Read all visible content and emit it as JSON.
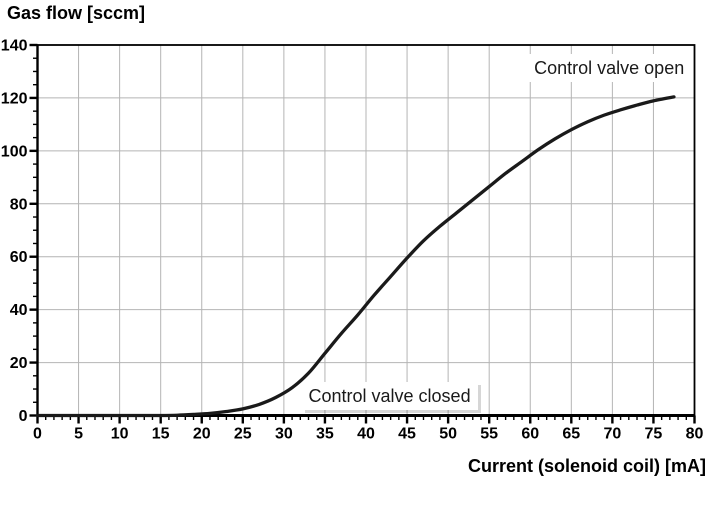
{
  "chart_data": {
    "type": "line",
    "title": "Gas flow [sccm]",
    "ylabel": "Gas flow [sccm]",
    "xlabel": "Current (solenoid coil) [mA]",
    "xlim": [
      0,
      80
    ],
    "ylim": [
      0,
      140
    ],
    "x_tick_labels": [
      0,
      5,
      10,
      15,
      20,
      25,
      30,
      35,
      40,
      45,
      50,
      55,
      60,
      65,
      70,
      75,
      80
    ],
    "y_tick_labels": [
      0,
      20,
      40,
      60,
      80,
      100,
      120,
      140
    ],
    "x_major_step": 5,
    "x_minor_step": 1,
    "y_major_step": 20,
    "y_minor_step": 5,
    "grid": true,
    "legend": "none",
    "series": [
      {
        "name": "gas-flow-vs-current",
        "x": [
          0,
          5,
          10,
          15,
          17,
          19,
          21,
          23,
          25,
          27,
          29,
          31,
          33,
          35,
          37,
          39,
          41,
          43,
          45,
          47,
          49,
          51,
          53,
          55,
          57,
          59,
          61,
          63,
          65,
          67,
          69,
          71,
          73,
          75,
          77.5
        ],
        "y": [
          0,
          0,
          0,
          0,
          0.1,
          0.4,
          0.8,
          1.5,
          2.5,
          4.2,
          6.8,
          10.5,
          16,
          23.5,
          31,
          38,
          45.5,
          52.5,
          59.5,
          66,
          71.5,
          76.5,
          81.5,
          86.5,
          91.5,
          96,
          100.5,
          104.5,
          108,
          111,
          113.5,
          115.5,
          117.3,
          118.9,
          120.4
        ]
      }
    ],
    "annotations": [
      {
        "text": "Control valve open",
        "x": 79.6,
        "y": 131,
        "anchor": "end",
        "shadow": false
      },
      {
        "text": "Control valve closed",
        "x": 33,
        "y": 7,
        "anchor": "start",
        "shadow": true
      }
    ],
    "colors": {
      "curve": "#1a1a1a",
      "grid": "#b4b4b4",
      "axis": "#000000",
      "background": "#ffffff"
    }
  }
}
